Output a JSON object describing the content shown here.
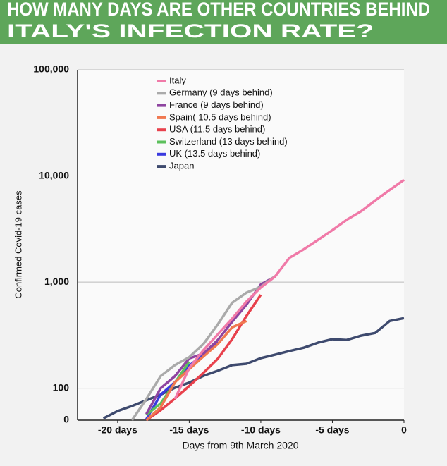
{
  "chart_data": {
    "type": "line",
    "title": "HOW MANY DAYS ARE OTHER COUNTRIES BEHIND ITALY'S INFECTION RATE?",
    "x_label": "Days from 9th March 2020",
    "y_label": "Confirmed Covid-19 cases",
    "log_scale_y": true,
    "grid": true,
    "legend": "top-left",
    "xlim": [
      -22.8,
      0
    ],
    "xticks": [
      {
        "value": -20,
        "label": "-20 days"
      },
      {
        "value": -15,
        "label": "-15 days"
      },
      {
        "value": -10,
        "label": "-10 days"
      },
      {
        "value": -5,
        "label": "-5 days"
      },
      0
    ],
    "ylim": [
      50,
      100000
    ],
    "yticks": [
      0,
      100,
      {
        "value": 1000,
        "label": "1,000"
      },
      {
        "value": 10000,
        "label": "10,000"
      },
      {
        "value": 100000,
        "label": "100,000"
      }
    ],
    "series": [
      {
        "name": "Italy",
        "color": "#f07aa8",
        "x": [
          -16,
          -15,
          -14,
          -13,
          -12,
          -11,
          -10,
          -9,
          -8,
          -7,
          -6,
          -5,
          -4,
          -3,
          -2,
          -1,
          0
        ],
        "values": [
          79,
          155,
          229,
          322,
          453,
          655,
          888,
          1128,
          1694,
          2036,
          2502,
          3089,
          3858,
          4636,
          5883,
          7375,
          9172
        ]
      },
      {
        "name": "Germany (9 days behind)",
        "color": "#aaaaaa",
        "x": [
          -19,
          -18,
          -17,
          -16,
          -15,
          -14,
          -13,
          -12,
          -11,
          -10,
          -9
        ],
        "values": [
          50,
          79,
          130,
          165,
          196,
          262,
          400,
          639,
          795,
          902,
          1139
        ]
      },
      {
        "name": "France (9 days behind)",
        "color": "#8e44a0",
        "x": [
          -18,
          -17,
          -16,
          -15,
          -14,
          -13,
          -12,
          -11,
          -10,
          -9
        ],
        "values": [
          57,
          100,
          130,
          191,
          212,
          285,
          423,
          613,
          949,
          1126
        ]
      },
      {
        "name": "Spain( 10.5 days behind)",
        "color": "#f07850",
        "x": [
          -18,
          -17,
          -16,
          -15,
          -14,
          -13,
          -12,
          -11
        ],
        "values": [
          50,
          66,
          114,
          151,
          200,
          261,
          374,
          430
        ]
      },
      {
        "name": "USA (11.5 days behind)",
        "color": "#e8414c",
        "x": [
          -18,
          -17,
          -16,
          -15,
          -14,
          -13,
          -12,
          -11,
          -10
        ],
        "values": [
          50,
          62,
          80,
          105,
          140,
          190,
          290,
          480,
          760
        ]
      },
      {
        "name": "Switzerland (13 days behind)",
        "color": "#5cc05c",
        "x": [
          -18,
          -17,
          -16,
          -15
        ],
        "values": [
          56,
          72,
          113,
          178
        ]
      },
      {
        "name": "UK (13.5 days behind)",
        "color": "#3a3adf",
        "x": [
          -18,
          -17,
          -16,
          -15,
          -14,
          -13
        ],
        "values": [
          51,
          87,
          114,
          163,
          209,
          273
        ]
      },
      {
        "name": "Japan",
        "color": "#3e4a6e",
        "x": [
          -21,
          -20,
          -19,
          -18,
          -17,
          -16,
          -15,
          -14,
          -13,
          -12,
          -11,
          -10,
          -9,
          -8,
          -7,
          -6,
          -5,
          -4,
          -3,
          -2,
          -1,
          0
        ],
        "values": [
          52,
          61,
          68,
          77,
          87,
          101,
          113,
          131,
          146,
          165,
          170,
          192,
          207,
          224,
          241,
          269,
          290,
          285,
          313,
          332,
          430,
          457
        ]
      }
    ]
  }
}
